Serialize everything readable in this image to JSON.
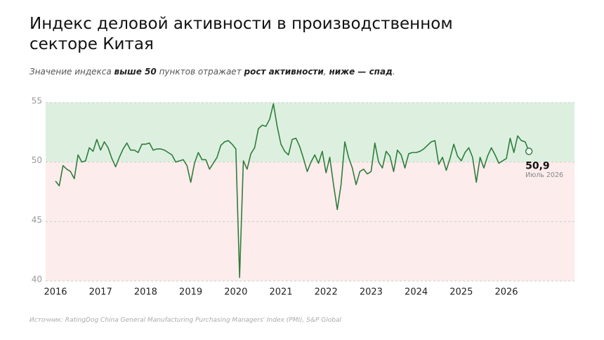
{
  "chart_data": {
    "type": "line",
    "title": "Индекс деловой активности в производственном секторе Китая",
    "subtitle": [
      {
        "text": "Значение индекса ",
        "bold": false
      },
      {
        "text": "выше 50",
        "bold": true
      },
      {
        "text": " пунктов отражает ",
        "bold": false
      },
      {
        "text": "рост активности",
        "bold": true
      },
      {
        "text": ", ",
        "bold": false
      },
      {
        "text": "ниже — спад",
        "bold": true
      },
      {
        "text": ".",
        "bold": false
      }
    ],
    "source": "Источник: RatingDog China General Manufacturing Purchasing Managers' Index (PMI), S&P Global",
    "categories": [
      "2016",
      null,
      null,
      null,
      null,
      null,
      null,
      null,
      null,
      null,
      null,
      null,
      "2017",
      null,
      null,
      null,
      null,
      null,
      null,
      null,
      null,
      null,
      null,
      null,
      "2018",
      null,
      null,
      null,
      null,
      null,
      null,
      null,
      null,
      null,
      null,
      null,
      "2019",
      null,
      null,
      null,
      null,
      null,
      null,
      null,
      null,
      null,
      null,
      null,
      "2020",
      null,
      null,
      null,
      null,
      null,
      null,
      null,
      null,
      null,
      null,
      null,
      "2021",
      null,
      null,
      null,
      null,
      null,
      null,
      null,
      null,
      null,
      null,
      null,
      "2022",
      null,
      null,
      null,
      null,
      null,
      null,
      null,
      null,
      null,
      null,
      null,
      "2023",
      null,
      null,
      null,
      null,
      null,
      null,
      null,
      null,
      null,
      null,
      null,
      "2024",
      null,
      null,
      null,
      null,
      null,
      null,
      null,
      null,
      null,
      null,
      null,
      "2025",
      null,
      null,
      null,
      null,
      null,
      null,
      null,
      null,
      null,
      null,
      null,
      "2026",
      null,
      null,
      null,
      null,
      null,
      null
    ],
    "series": [
      {
        "name": "PMI",
        "color": "#2f7d3b",
        "values": [
          48.4,
          48.0,
          49.7,
          49.4,
          49.2,
          48.6,
          50.6,
          50.0,
          50.1,
          51.2,
          50.9,
          51.9,
          51.0,
          51.7,
          51.2,
          50.3,
          49.6,
          50.4,
          51.1,
          51.6,
          51.0,
          51.0,
          50.8,
          51.5,
          51.5,
          51.6,
          51.0,
          51.1,
          51.1,
          51.0,
          50.8,
          50.6,
          50.0,
          50.1,
          50.2,
          49.7,
          48.3,
          49.9,
          50.8,
          50.2,
          50.2,
          49.4,
          49.9,
          50.4,
          51.4,
          51.7,
          51.8,
          51.5,
          51.1,
          40.3,
          50.1,
          49.4,
          50.7,
          51.2,
          52.8,
          53.1,
          53.0,
          53.6,
          54.9,
          53.0,
          51.5,
          50.9,
          50.6,
          51.9,
          52.0,
          51.3,
          50.3,
          49.2,
          50.0,
          50.6,
          49.9,
          50.9,
          49.1,
          50.4,
          48.1,
          46.0,
          48.1,
          51.7,
          50.4,
          49.5,
          48.1,
          49.2,
          49.4,
          49.0,
          49.2,
          51.6,
          50.0,
          49.5,
          50.9,
          50.5,
          49.2,
          51.0,
          50.6,
          49.5,
          50.7,
          50.8,
          50.8,
          50.9,
          51.1,
          51.4,
          51.7,
          51.8,
          49.8,
          50.4,
          49.3,
          50.3,
          51.5,
          50.5,
          50.1,
          50.8,
          51.2,
          50.4,
          48.3,
          50.4,
          49.5,
          50.5,
          51.2,
          50.6,
          49.9,
          50.1,
          50.3,
          52.0,
          50.8,
          52.2,
          51.8,
          51.7,
          50.9
        ]
      }
    ],
    "annotation": {
      "value_label": "50,9",
      "date": "Июль 2026"
    },
    "bands": [
      {
        "from": 50,
        "to": 55,
        "color": "#ddf0e0"
      },
      {
        "from": 40,
        "to": 50,
        "color": "#fcecec"
      }
    ],
    "ylim": [
      40,
      55
    ],
    "yticks": [
      40,
      45,
      50,
      55
    ],
    "grid": true
  }
}
